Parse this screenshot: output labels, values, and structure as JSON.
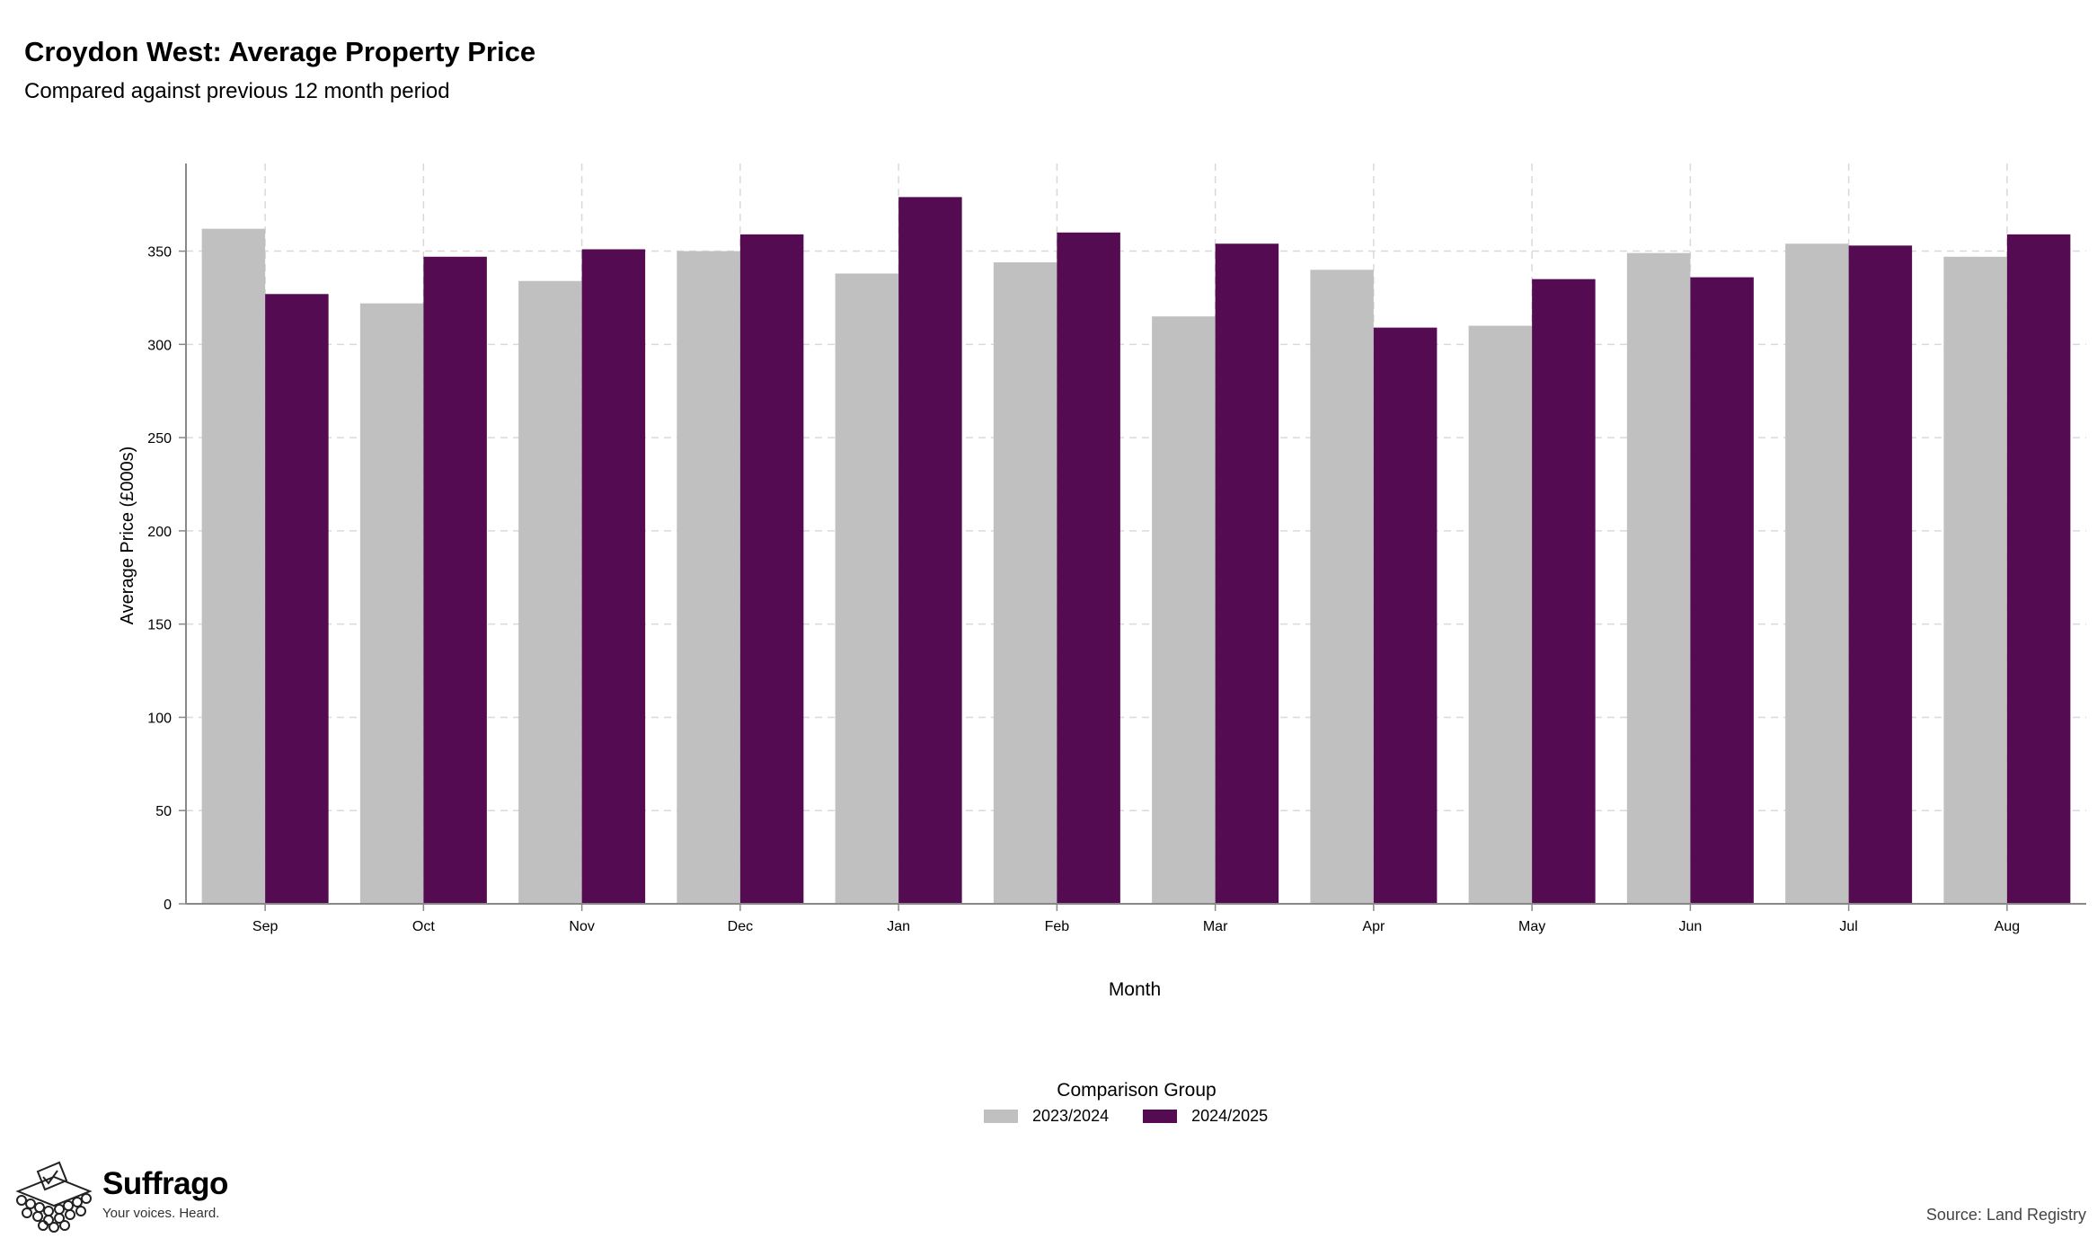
{
  "header": {
    "title": "Croydon West: Average Property Price",
    "subtitle": "Compared against previous 12 month period"
  },
  "chart_data": {
    "type": "bar",
    "xlabel": "Month",
    "ylabel": "Average Price (£000s)",
    "ylim": [
      0,
      397
    ],
    "yticks": [
      0,
      50,
      100,
      150,
      200,
      250,
      300,
      350
    ],
    "grid": true,
    "legend_position": "bottom",
    "legend_title": "Comparison Group",
    "categories": [
      "Sep",
      "Oct",
      "Nov",
      "Dec",
      "Jan",
      "Feb",
      "Mar",
      "Apr",
      "May",
      "Jun",
      "Jul",
      "Aug"
    ],
    "series": [
      {
        "name": "2023/2024",
        "color": "#c0c0c0",
        "values": [
          362,
          322,
          334,
          350,
          338,
          344,
          315,
          340,
          310,
          349,
          354,
          347
        ]
      },
      {
        "name": "2024/2025",
        "color": "#540b51",
        "values": [
          327,
          347,
          351,
          359,
          379,
          360,
          354,
          309,
          335,
          336,
          353,
          359
        ]
      }
    ]
  },
  "footer": {
    "brand": "Suffrago",
    "tagline": "Your voices. Heard.",
    "source": "Source: Land Registry"
  }
}
